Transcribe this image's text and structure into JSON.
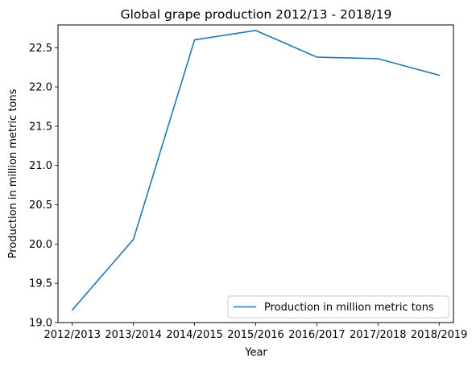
{
  "chart_data": {
    "type": "line",
    "title": "Global grape production 2012/13 - 2018/19",
    "xlabel": "Year",
    "ylabel": "Production in million metric tons",
    "categories": [
      "2012/2013",
      "2013/2014",
      "2014/2015",
      "2015/2016",
      "2016/2017",
      "2017/2018",
      "2018/2019"
    ],
    "series": [
      {
        "name": "Production in million metric tons",
        "values": [
          19.16,
          20.06,
          22.6,
          22.72,
          22.38,
          22.36,
          22.15
        ],
        "color": "#1f77b4"
      }
    ],
    "ylim": [
      19.0,
      22.79
    ],
    "yticks": [
      19.0,
      19.5,
      20.0,
      20.5,
      21.0,
      21.5,
      22.0,
      22.5
    ],
    "ytick_labels": [
      "19.0",
      "19.5",
      "20.0",
      "20.5",
      "21.0",
      "21.5",
      "22.0",
      "22.5"
    ],
    "grid": false,
    "legend_position": "lower-right"
  }
}
